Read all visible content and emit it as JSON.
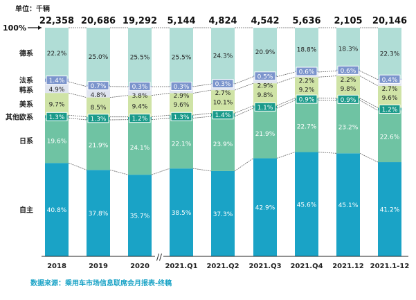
{
  "chart_data": {
    "type": "bar",
    "stacked": "100%",
    "unit_label": "单位：千辆",
    "top_label": "100%",
    "categories": [
      "2018",
      "2019",
      "2020",
      "2021.Q1",
      "2021.Q2",
      "2021.Q3",
      "2021.Q4",
      "2021.12",
      "2021.1-12"
    ],
    "totals": [
      "22,358",
      "20,686",
      "19,292",
      "5,144",
      "4,824",
      "4,542",
      "5,636",
      "2,105",
      "20,146"
    ],
    "axis_break_after": "2020",
    "series": [
      {
        "name": "自主",
        "color": "#1aa3c6",
        "values": [
          40.8,
          37.8,
          35.7,
          38.5,
          37.3,
          42.9,
          45.6,
          45.1,
          41.2
        ]
      },
      {
        "name": "日系",
        "color": "#6fc3a3",
        "values": [
          19.6,
          21.9,
          24.1,
          22.1,
          23.9,
          21.9,
          22.7,
          23.2,
          22.6
        ]
      },
      {
        "name": "其他欧系",
        "color": "#1a9a8a",
        "values": [
          1.3,
          1.3,
          1.2,
          1.3,
          1.4,
          1.1,
          0.9,
          0.9,
          1.2
        ]
      },
      {
        "name": "美系",
        "color": "#cfe3a6",
        "values": [
          9.7,
          8.5,
          9.4,
          9.6,
          10.1,
          9.8,
          9.2,
          9.8,
          9.6
        ]
      },
      {
        "name": "韩系",
        "color": "#dfe4ef",
        "values": [
          4.9,
          4.8,
          3.8,
          2.9,
          2.7,
          2.9,
          2.2,
          2.2,
          2.7
        ]
      },
      {
        "name": "法系",
        "color": "#7b94cc",
        "values": [
          1.4,
          0.7,
          0.3,
          0.3,
          0.3,
          0.5,
          0.6,
          0.6,
          0.4
        ]
      },
      {
        "name": "德系",
        "color": "#b0ddd6",
        "values": [
          22.2,
          25.0,
          25.5,
          25.5,
          24.3,
          20.9,
          18.8,
          18.3,
          22.3
        ]
      }
    ],
    "source": "数据来源：乘用车市场信息联席会月报表-终稿"
  }
}
